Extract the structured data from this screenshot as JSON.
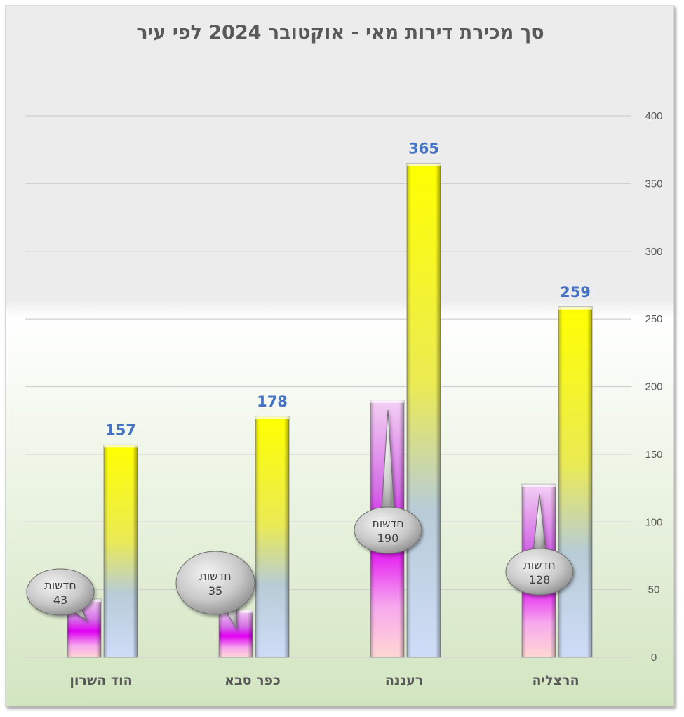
{
  "chart_data": {
    "type": "bar",
    "title": "סך מכירת דירות מאי - אוקטובר 2024 לפי עיר",
    "categories": [
      "הוד השרון",
      "כפר סבא",
      "רעננה",
      "הרצליה"
    ],
    "series": [
      {
        "values": [
          43,
          35,
          190,
          128
        ]
      },
      {
        "values": [
          157,
          178,
          365,
          259
        ]
      }
    ],
    "callout_label": "חדשות",
    "ylim": [
      0,
      400
    ],
    "yticks": [
      0,
      50,
      100,
      150,
      200,
      250,
      300,
      350,
      400
    ],
    "y_axis_position": "right",
    "grid": true,
    "legend": "none",
    "colors": {
      "small_bar_top": "#f3c9f0",
      "small_bar_mid": "#e600f5",
      "small_bar_bottom": "#ffd3d3",
      "big_bar_top": "#ffff00",
      "big_bar_bottom": "#c6d9f7",
      "value_label": "#4472C4",
      "bg_top": "#ededed",
      "bg_bottom": "#d3e6c2"
    }
  }
}
